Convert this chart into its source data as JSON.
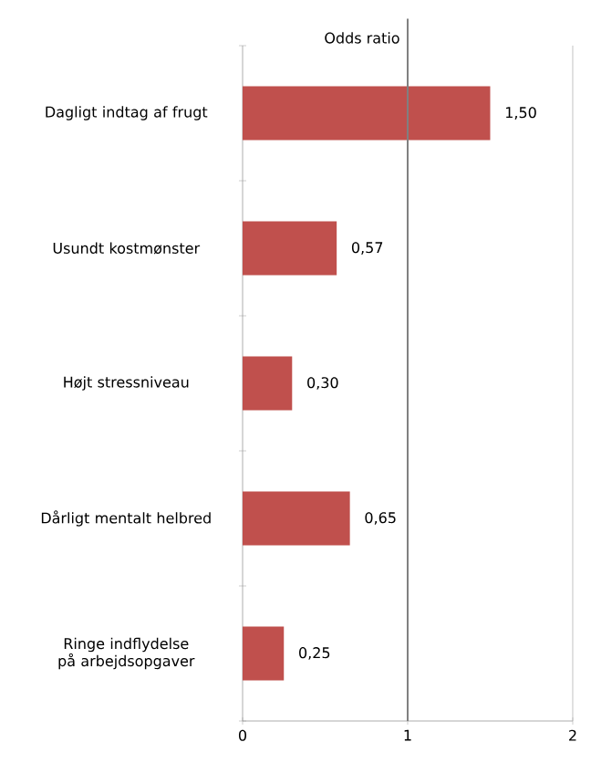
{
  "chart_data": {
    "type": "bar",
    "orientation": "horizontal",
    "categories": [
      "Dagligt indtag af frugt",
      "Usundt kostmønster",
      "Højt stressniveau",
      "Dårligt mentalt helbred",
      "Ringe indflydelse på arbejdsopgaver"
    ],
    "values": [
      1.5,
      0.57,
      0.3,
      0.65,
      0.25
    ],
    "value_labels": [
      "1,50",
      "0,57",
      "0,30",
      "0,65",
      "0,25"
    ],
    "color": "#c0504d",
    "xlim": [
      0,
      2
    ],
    "xticks": [
      0,
      1,
      2
    ],
    "ref_lines": [
      {
        "axis": "x",
        "value": 1,
        "label": "Odds ratio",
        "color": "#808080"
      }
    ]
  }
}
